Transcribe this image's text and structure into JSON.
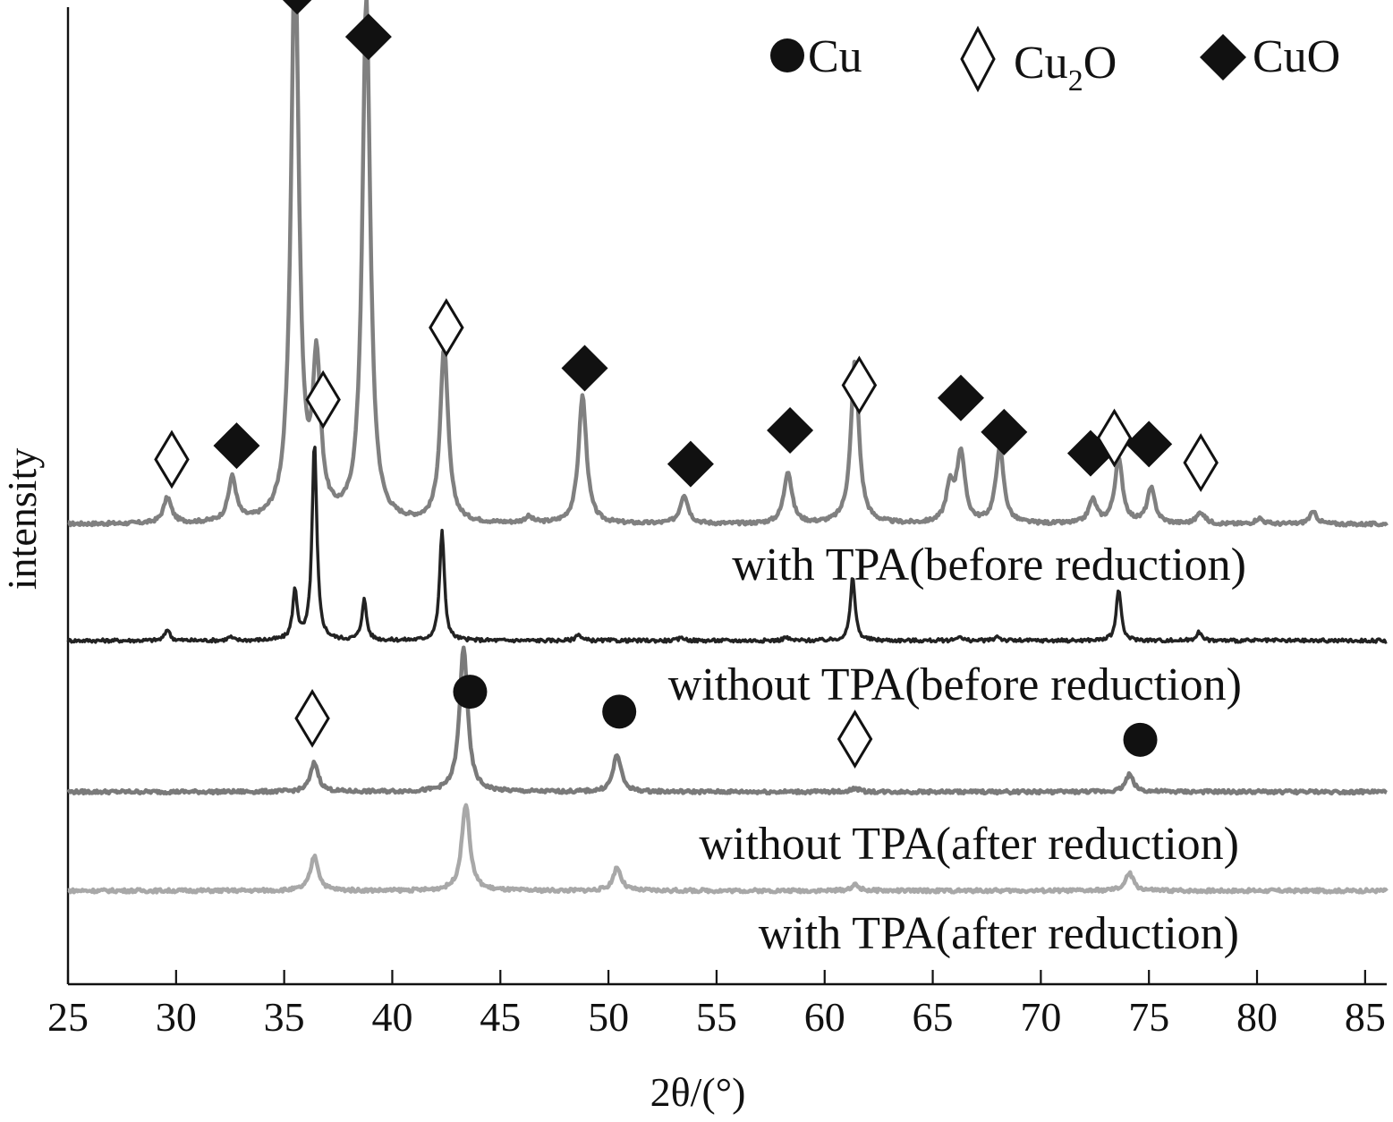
{
  "chart_data": {
    "type": "line",
    "xlabel": "2θ/(°)",
    "ylabel": "intensity",
    "xlim": [
      25,
      86
    ],
    "xticks": [
      25,
      30,
      35,
      40,
      45,
      50,
      55,
      60,
      65,
      70,
      75,
      80,
      85
    ],
    "y_ticks_shown": false,
    "legend": {
      "placement": "top-right",
      "entries": [
        {
          "symbol": "filled-circle",
          "label": "Cu"
        },
        {
          "symbol": "open-diamond",
          "label": "Cu",
          "subscript": "2",
          "label_suffix": "O"
        },
        {
          "symbol": "filled-diamond",
          "label": "CuO"
        }
      ]
    },
    "series": [
      {
        "name": "with TPA(before reduction)",
        "color": "#808080",
        "baseline": 1.0,
        "peaks": [
          {
            "x": 29.6,
            "h": 0.22
          },
          {
            "x": 32.6,
            "h": 0.38
          },
          {
            "x": 35.5,
            "h": 4.9
          },
          {
            "x": 36.5,
            "h": 1.3
          },
          {
            "x": 38.8,
            "h": 4.5
          },
          {
            "x": 42.4,
            "h": 1.5
          },
          {
            "x": 46.3,
            "h": 0.05
          },
          {
            "x": 48.8,
            "h": 1.1
          },
          {
            "x": 53.5,
            "h": 0.25
          },
          {
            "x": 58.3,
            "h": 0.45
          },
          {
            "x": 61.4,
            "h": 1.4
          },
          {
            "x": 65.8,
            "h": 0.3
          },
          {
            "x": 66.3,
            "h": 0.6
          },
          {
            "x": 68.1,
            "h": 0.65
          },
          {
            "x": 72.4,
            "h": 0.2
          },
          {
            "x": 73.6,
            "h": 0.55
          },
          {
            "x": 75.1,
            "h": 0.3
          },
          {
            "x": 77.4,
            "h": 0.1
          },
          {
            "x": 80.1,
            "h": 0.05
          },
          {
            "x": 82.6,
            "h": 0.1
          }
        ]
      },
      {
        "name": "without TPA(before reduction)",
        "color": "#222222",
        "baseline": 0.0,
        "peaks": [
          {
            "x": 29.6,
            "h": 0.1
          },
          {
            "x": 32.5,
            "h": 0.03
          },
          {
            "x": 35.5,
            "h": 0.42
          },
          {
            "x": 36.4,
            "h": 1.7
          },
          {
            "x": 38.7,
            "h": 0.35
          },
          {
            "x": 42.3,
            "h": 0.95
          },
          {
            "x": 48.6,
            "h": 0.06
          },
          {
            "x": 53.4,
            "h": 0.03
          },
          {
            "x": 58.2,
            "h": 0.03
          },
          {
            "x": 61.3,
            "h": 0.55
          },
          {
            "x": 66.2,
            "h": 0.04
          },
          {
            "x": 68.0,
            "h": 0.04
          },
          {
            "x": 73.6,
            "h": 0.45
          },
          {
            "x": 77.3,
            "h": 0.08
          }
        ]
      },
      {
        "name": "without TPA(after reduction)",
        "color": "#7a7a7a",
        "baseline": -1.3,
        "peaks": [
          {
            "x": 36.4,
            "h": 0.25
          },
          {
            "x": 43.3,
            "h": 1.25
          },
          {
            "x": 50.4,
            "h": 0.32
          },
          {
            "x": 61.4,
            "h": 0.03
          },
          {
            "x": 74.1,
            "h": 0.15
          }
        ]
      },
      {
        "name": "with TPA(after reduction)",
        "color": "#a8a8a8",
        "baseline": -2.15,
        "peaks": [
          {
            "x": 36.4,
            "h": 0.3
          },
          {
            "x": 43.4,
            "h": 0.75
          },
          {
            "x": 50.4,
            "h": 0.2
          },
          {
            "x": 61.4,
            "h": 0.05
          },
          {
            "x": 74.1,
            "h": 0.15
          }
        ]
      }
    ],
    "markers": [
      {
        "x": 29.8,
        "series": 0,
        "type": "open-diamond"
      },
      {
        "x": 32.8,
        "series": 0,
        "type": "filled-diamond"
      },
      {
        "x": 35.6,
        "series": 0,
        "type": "filled-diamond"
      },
      {
        "x": 36.8,
        "series": 0,
        "type": "open-diamond"
      },
      {
        "x": 38.9,
        "series": 0,
        "type": "filled-diamond"
      },
      {
        "x": 42.5,
        "series": 0,
        "type": "open-diamond"
      },
      {
        "x": 48.9,
        "series": 0,
        "type": "filled-diamond"
      },
      {
        "x": 53.8,
        "series": 0,
        "type": "filled-diamond"
      },
      {
        "x": 58.4,
        "series": 0,
        "type": "filled-diamond"
      },
      {
        "x": 61.6,
        "series": 0,
        "type": "open-diamond"
      },
      {
        "x": 66.3,
        "series": 0,
        "type": "filled-diamond"
      },
      {
        "x": 68.3,
        "series": 0,
        "type": "filled-diamond"
      },
      {
        "x": 72.3,
        "series": 0,
        "type": "filled-diamond"
      },
      {
        "x": 73.4,
        "series": 0,
        "type": "open-diamond"
      },
      {
        "x": 75.0,
        "series": 0,
        "type": "filled-diamond"
      },
      {
        "x": 77.4,
        "series": 0,
        "type": "open-diamond"
      },
      {
        "x": 43.6,
        "series": 2,
        "type": "filled-circle"
      },
      {
        "x": 36.3,
        "series": 2,
        "type": "open-diamond"
      },
      {
        "x": 50.5,
        "series": 2,
        "type": "filled-circle"
      },
      {
        "x": 61.4,
        "series": 2,
        "type": "open-diamond"
      },
      {
        "x": 74.6,
        "series": 2,
        "type": "filled-circle"
      }
    ]
  }
}
